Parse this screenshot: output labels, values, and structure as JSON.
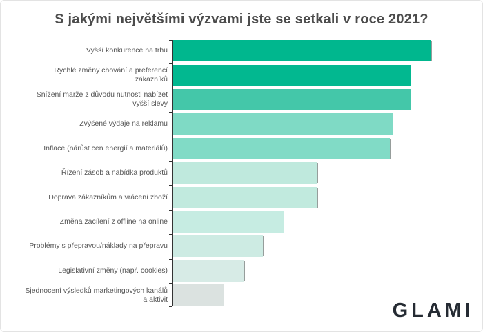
{
  "chart_data": {
    "type": "bar",
    "orientation": "horizontal",
    "title": "S jakými největšími výzvami jste se setkali v roce 2021?",
    "categories": [
      "Vyšší konkurence na trhu",
      "Rychlé změny chování a preferencí zákazníků",
      "Snížení marže z důvodu nutnosti nabízet vyšší slevy",
      "Zvýšené výdaje na reklamu",
      "Inflace (nárůst cen energií a materiálů)",
      "Řízení zásob a nabídka produktů",
      "Doprava zákazníkům a vrácení zboží",
      "Změna zacílení z offline na online",
      "Problémy s přepravou/náklady na přepravu",
      "Legislativní změny (např. cookies)",
      "Sjednocení výsledků marketingových kanálů a aktivit"
    ],
    "values": [
      100,
      92,
      92,
      85,
      84,
      56,
      56,
      43,
      35,
      28,
      20
    ],
    "value_note": "relative bar lengths, longest bar = 100 (chart displays no numeric axis, gridlines or data labels)",
    "bar_colors": [
      "#00b78e",
      "#02b890",
      "#44c7a9",
      "#7fdac5",
      "#81dbc6",
      "#bfe9dd",
      "#c1eade",
      "#c6ece2",
      "#cdebe3",
      "#d7ebe6",
      "#dbe2e0"
    ],
    "axis_color": "#333333",
    "label_color": "#565656",
    "title_color": "#4c4c4c",
    "xlabel": "",
    "ylabel": "",
    "grid": "off",
    "legend": "none"
  },
  "logo": {
    "text": "GLAMI",
    "color": "#252b33"
  }
}
